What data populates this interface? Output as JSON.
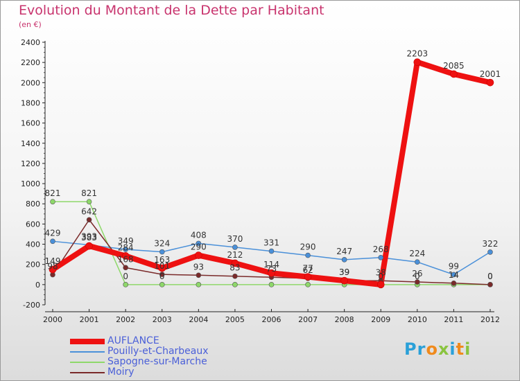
{
  "header": {
    "title": "Evolution du Montant de la Dette par Habitant",
    "subtitle": "(en €)"
  },
  "logo": {
    "letters": [
      "P",
      "r",
      "o",
      "x",
      "i",
      "t",
      "i"
    ],
    "colors": [
      "#2aa0d8",
      "#2aa0d8",
      "#f08a1c",
      "#8ac43f",
      "#2aa0d8",
      "#f08a1c",
      "#8ac43f"
    ]
  },
  "chart_data": {
    "type": "line",
    "title": "Evolution du Montant de la Dette par Habitant",
    "subtitle": "(en €)",
    "x": [
      "2000",
      "2001",
      "2002",
      "2003",
      "2004",
      "2005",
      "2006",
      "2007",
      "2008",
      "2009",
      "2010",
      "2011",
      "2012"
    ],
    "ylim": [
      -200,
      2400
    ],
    "yticks": [
      -200,
      0,
      200,
      400,
      600,
      800,
      1000,
      1200,
      1400,
      1600,
      1800,
      2000,
      2200,
      2400
    ],
    "grid": false,
    "legend_position": "bottom-left",
    "series": [
      {
        "name": "AUFLANCE",
        "color": "#ee1111",
        "values": [
          149,
          383,
          284,
          163,
          290,
          212,
          114,
          77,
          39,
          0,
          2203,
          2085,
          2001
        ],
        "labels": [
          "149",
          "383",
          "284",
          "163",
          "290",
          "212",
          "114",
          "77",
          "39",
          "0",
          "2203",
          "2085",
          "2001"
        ]
      },
      {
        "name": "Pouilly-et-Charbeaux",
        "color": "#4a90d9",
        "values": [
          429,
          393,
          349,
          324,
          408,
          370,
          331,
          290,
          247,
          268,
          224,
          99,
          322
        ],
        "labels": [
          "429",
          "393",
          "349",
          "324",
          "408",
          "370",
          "331",
          "290",
          "247",
          "268",
          "224",
          "99",
          "322"
        ]
      },
      {
        "name": "Sapogne-sur-Marche",
        "color": "#8ed86a",
        "values": [
          821,
          821,
          0,
          0,
          0,
          0,
          0,
          0,
          0,
          0,
          0,
          0,
          0
        ],
        "labels": [
          "821",
          "821",
          "0",
          "0",
          "",
          "",
          "",
          "",
          "",
          "",
          "0",
          "",
          "0"
        ]
      },
      {
        "name": "Moiry",
        "color": "#7a2a2a",
        "values": [
          98,
          642,
          168,
          101,
          93,
          83,
          73,
          62,
          39,
          38,
          26,
          14,
          0
        ],
        "labels": [
          "98",
          "642",
          "168",
          "101",
          "93",
          "83",
          "73",
          "62",
          "39",
          "38",
          "26",
          "14",
          "0"
        ]
      }
    ]
  }
}
